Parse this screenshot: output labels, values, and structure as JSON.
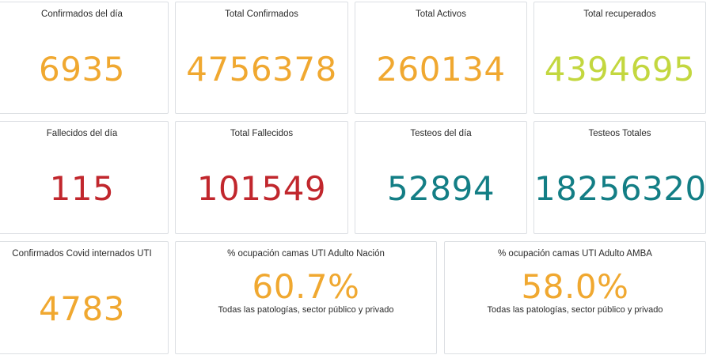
{
  "colors": {
    "confirmed": "#f0a830",
    "recovered": "#c3d73f",
    "deceased": "#c1272d",
    "tests": "#137e85"
  },
  "row1": {
    "confirmados_dia": {
      "title": "Confirmados del día",
      "value": "6935"
    },
    "total_confirmados": {
      "title": "Total Confirmados",
      "value": "4756378"
    },
    "total_activos": {
      "title": "Total Activos",
      "value": "260134"
    },
    "total_recuperados": {
      "title": "Total recuperados",
      "value": "4394695"
    }
  },
  "row2": {
    "fallecidos_dia": {
      "title": "Fallecidos del día",
      "value": "115"
    },
    "total_fallecidos": {
      "title": "Total Fallecidos",
      "value": "101549"
    },
    "testeos_dia": {
      "title": "Testeos del día",
      "value": "52894"
    },
    "testeos_totales": {
      "title": "Testeos Totales",
      "value": "18256320"
    }
  },
  "row3": {
    "internados_uti": {
      "title": "Confirmados Covid internados UTI",
      "value": "4783"
    },
    "ocupacion_nacion": {
      "title": "% ocupación camas UTI Adulto Nación",
      "value": "60.7%",
      "subtitle": "Todas las patologías, sector público y privado"
    },
    "ocupacion_amba": {
      "title": "% ocupación camas UTI Adulto AMBA",
      "value": "58.0%",
      "subtitle": "Todas las patologías, sector público y privado"
    }
  }
}
